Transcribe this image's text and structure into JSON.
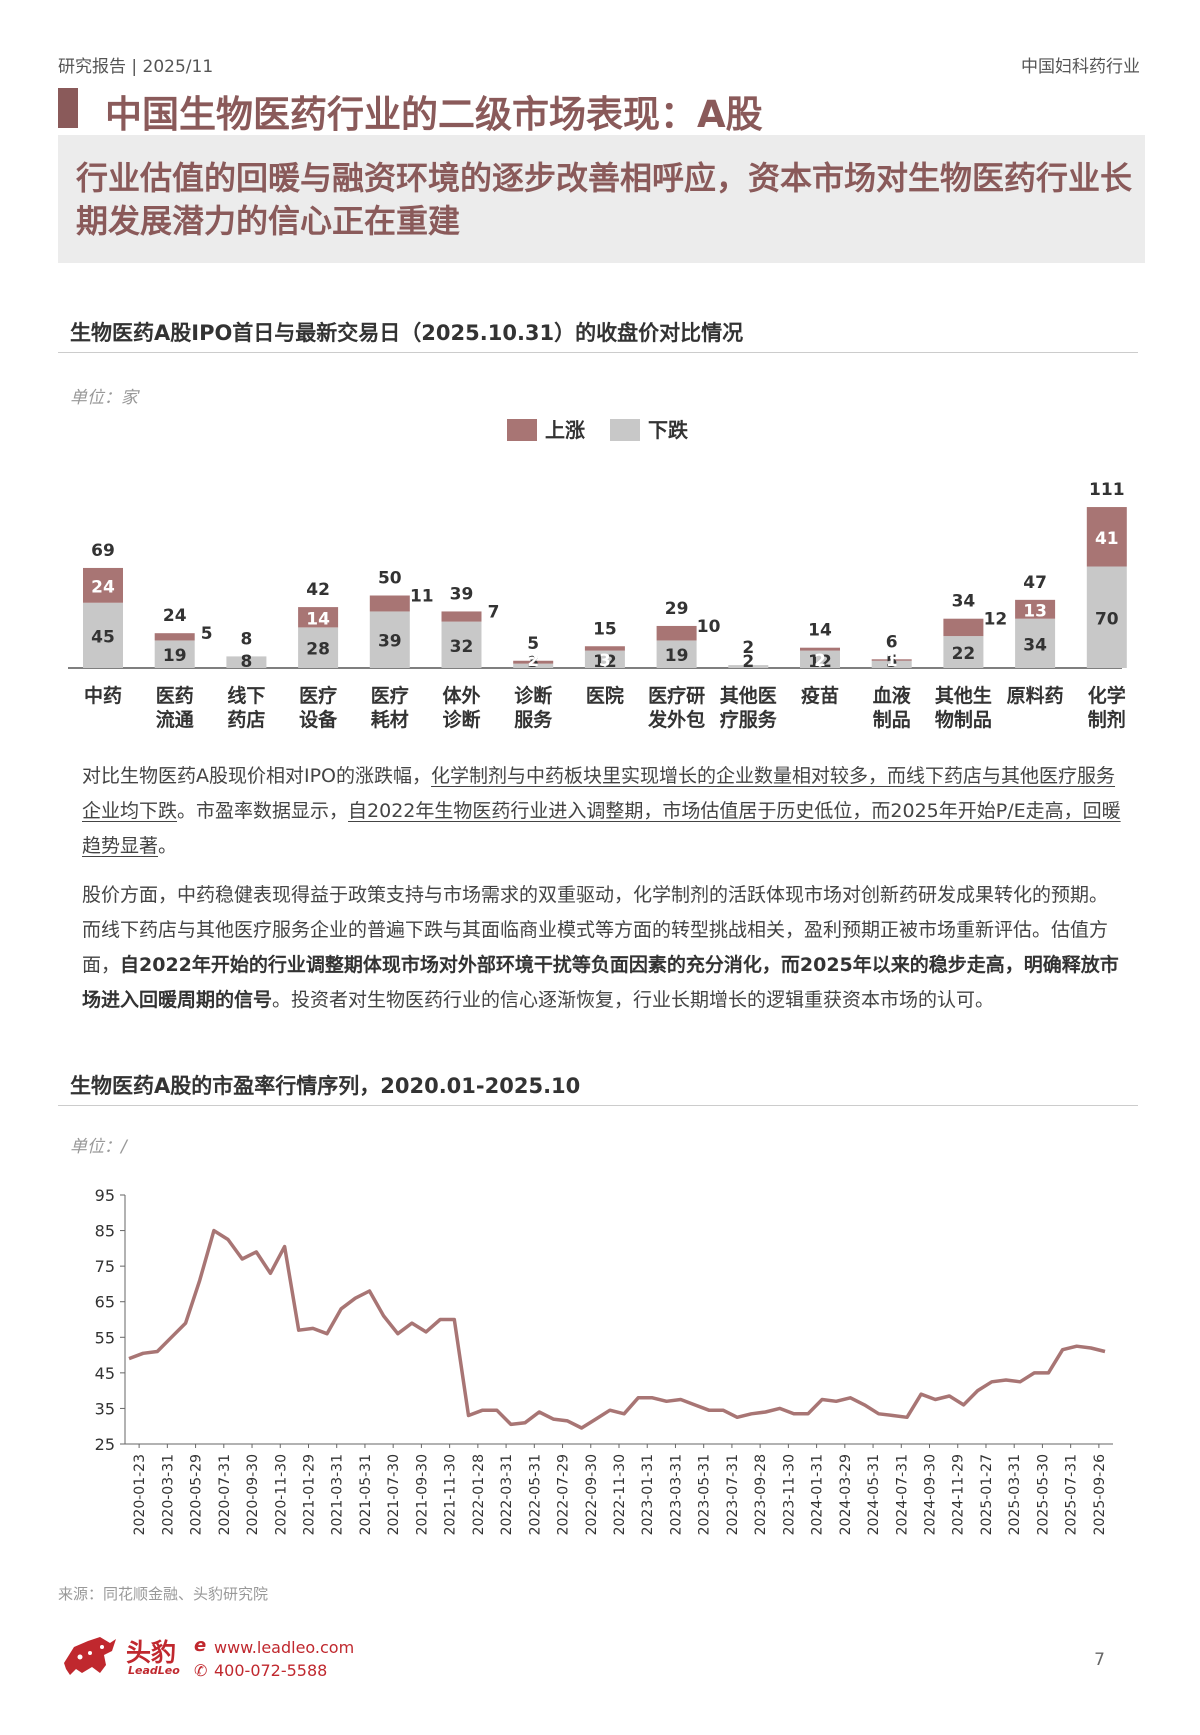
{
  "header": {
    "left": "研究报告 | 2025/11",
    "right": "中国妇科药行业"
  },
  "title": "中国生物医药行业的二级市场表现：A股",
  "summary": "行业估值的回暖与融资环境的逐步改善相呼应，资本市场对生物医药行业长期发展潜力的信心正在重建",
  "section1": {
    "title": "生物医药A股IPO首日与最新交易日（2025.10.31）的收盘价对比情况",
    "unit": "单位：家"
  },
  "paragraph1": {
    "t1": "对比生物医药A股现价相对IPO的涨跌幅，",
    "u1": "化学制剂与中药板块里实现增长的企业数量相对较多，而线下药店与其他医疗服务企业均下跌",
    "t2": "。市盈率数据显示，",
    "u2": "自2022年生物医药行业进入调整期，市场估值居于历史低位，而2025年开始P/E走高，回暖趋势显著",
    "t3": "。"
  },
  "paragraph2": {
    "t1": "股价方面，中药稳健表现得益于政策支持与市场需求的双重驱动，化学制剂的活跃体现市场对创新药研发成果转化的预期。而线下药店与其他医疗服务企业的普遍下跌与其面临商业模式等方面的转型挑战相关，盈利预期正被市场重新评估。估值方面，",
    "b1": "自2022年开始的行业调整期体现市场对外部环境干扰等负面因素的充分消化，而2025年以来的稳步走高，明确释放市场进入回暖周期的信号",
    "t2": "。投资者对生物医药行业的信心逐渐恢复，行业长期增长的逻辑重获资本市场的认可。"
  },
  "section2": {
    "title": "生物医药A股的市盈率行情序列，2020.01-2025.10",
    "unit": "单位：/"
  },
  "source": "来源：同花顺金融、头豹研究院",
  "footer": {
    "logo_cn": "头豹",
    "logo_en": "LeadLeo",
    "website": "www.leadleo.com",
    "phone": "400-072-5588",
    "page": "7"
  },
  "colors": {
    "accent": "#8a5a5a",
    "rise": "#a87574",
    "fall": "#c8c8c8",
    "line": "#a87574"
  },
  "chart_data": [
    {
      "type": "bar",
      "stacked": true,
      "legend": [
        "上涨",
        "下跌"
      ],
      "legend_position": "top-center",
      "categories": [
        [
          "中药"
        ],
        [
          "医药",
          "流通"
        ],
        [
          "线下",
          "药店"
        ],
        [
          "医疗",
          "设备"
        ],
        [
          "医疗",
          "耗材"
        ],
        [
          "体外",
          "诊断"
        ],
        [
          "诊断",
          "服务"
        ],
        [
          "医院"
        ],
        [
          "医疗研",
          "发外包"
        ],
        [
          "其他医",
          "疗服务"
        ],
        [
          "疫苗"
        ],
        [
          "血液",
          "制品"
        ],
        [
          "其他生",
          "物制品"
        ],
        [
          "原料药"
        ],
        [
          "化学",
          "制剂"
        ]
      ],
      "series": [
        {
          "name": "下跌",
          "values": [
            45,
            19,
            8,
            28,
            39,
            32,
            3,
            12,
            19,
            2,
            12,
            5,
            22,
            34,
            70
          ]
        },
        {
          "name": "上涨",
          "values": [
            24,
            5,
            0,
            14,
            11,
            7,
            2,
            3,
            10,
            0,
            2,
            1,
            12,
            13,
            41
          ]
        }
      ],
      "totals": [
        69,
        24,
        8,
        42,
        50,
        39,
        5,
        15,
        29,
        2,
        14,
        6,
        34,
        47,
        111
      ]
    },
    {
      "type": "line",
      "ylim": [
        25,
        95
      ],
      "yticks": [
        25,
        35,
        45,
        55,
        65,
        75,
        85,
        95
      ],
      "x_tick_labels": [
        "2020-01-23",
        "2020-03-31",
        "2020-05-29",
        "2020-07-31",
        "2020-09-30",
        "2020-11-30",
        "2021-01-29",
        "2021-03-31",
        "2021-05-31",
        "2021-07-30",
        "2021-09-30",
        "2021-11-30",
        "2022-01-28",
        "2022-03-31",
        "2022-05-31",
        "2022-07-29",
        "2022-09-30",
        "2022-11-30",
        "2023-01-31",
        "2023-03-31",
        "2023-05-31",
        "2023-07-31",
        "2023-09-28",
        "2023-11-30",
        "2024-01-31",
        "2024-03-29",
        "2024-05-31",
        "2024-07-31",
        "2024-09-30",
        "2024-11-29",
        "2025-01-27",
        "2025-03-31",
        "2025-05-30",
        "2025-07-31",
        "2025-09-26"
      ],
      "values": [
        49,
        50.5,
        51,
        55,
        59,
        71,
        85,
        82.5,
        77,
        79,
        73,
        80.5,
        57,
        57.5,
        56,
        63,
        66,
        68,
        61,
        56,
        59,
        56.5,
        60,
        60,
        33,
        34.5,
        34.5,
        30.5,
        31,
        34,
        32,
        31.5,
        29.5,
        32,
        34.5,
        33.5,
        38,
        38,
        37,
        37.5,
        36,
        34.5,
        34.5,
        32.5,
        33.5,
        34,
        35,
        33.5,
        33.5,
        37.5,
        37,
        38,
        36,
        33.5,
        33,
        32.5,
        39,
        37.5,
        38.5,
        36,
        40,
        42.5,
        43,
        42.5,
        45,
        45,
        51.5,
        52.5,
        52,
        51
      ]
    }
  ]
}
